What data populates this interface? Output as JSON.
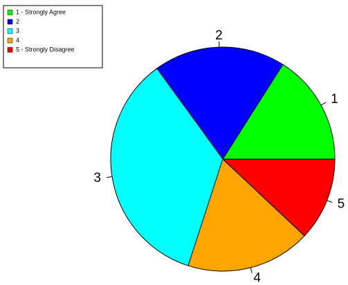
{
  "chart_data": {
    "type": "pie",
    "categories": [
      "1",
      "2",
      "3",
      "4",
      "5"
    ],
    "values": [
      16,
      19,
      35,
      18,
      12
    ],
    "colors": [
      "#00ff00",
      "#0000ff",
      "#00ffff",
      "#ffa500",
      "#ff0000"
    ],
    "legend": [
      "1 - Strongly Agree",
      "2",
      "3",
      "4",
      "5 - Strongly Disagree"
    ],
    "legend_position": "top-left"
  }
}
